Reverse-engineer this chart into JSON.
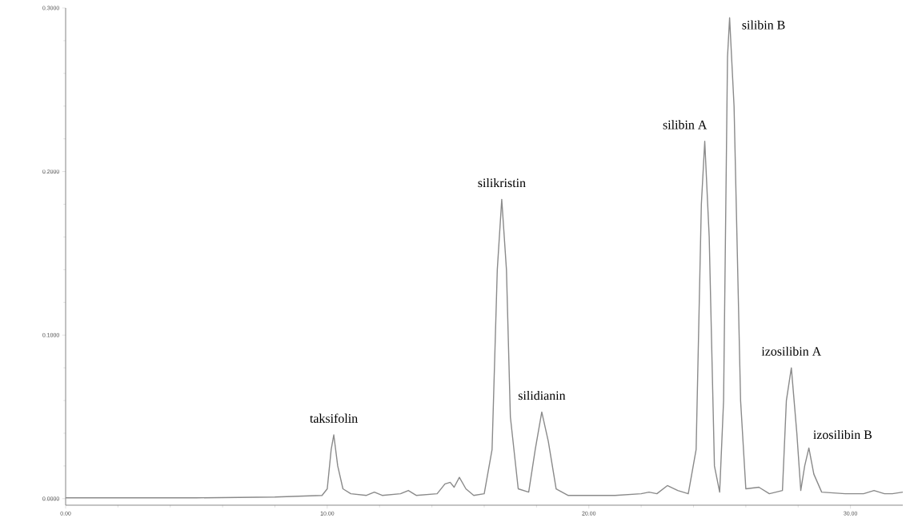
{
  "chart_data": {
    "type": "line",
    "x": [
      0,
      5,
      8,
      9.8,
      10.0,
      10.15,
      10.25,
      10.4,
      10.6,
      10.9,
      11.5,
      11.8,
      12.1,
      12.8,
      13.1,
      13.4,
      14.2,
      14.5,
      14.7,
      14.85,
      15.05,
      15.3,
      15.6,
      16.0,
      16.3,
      16.5,
      16.67,
      16.85,
      17.0,
      17.3,
      17.7,
      17.95,
      18.2,
      18.45,
      18.75,
      19.2,
      20,
      21,
      22.0,
      22.3,
      22.6,
      23.0,
      23.4,
      23.8,
      24.1,
      24.3,
      24.43,
      24.6,
      24.8,
      25.0,
      25.15,
      25.3,
      25.38,
      25.55,
      25.8,
      26.0,
      26.5,
      26.9,
      27.4,
      27.55,
      27.74,
      27.95,
      28.1,
      28.25,
      28.41,
      28.6,
      28.9,
      29.8,
      30.5,
      30.9,
      31.3,
      31.6,
      32.0
    ],
    "series": [
      {
        "color": "#8a8a8a",
        "values": [
          0.0005,
          0.0005,
          0.001,
          0.002,
          0.006,
          0.03,
          0.039,
          0.02,
          0.006,
          0.003,
          0.002,
          0.004,
          0.002,
          0.003,
          0.005,
          0.002,
          0.003,
          0.009,
          0.01,
          0.007,
          0.013,
          0.006,
          0.002,
          0.003,
          0.03,
          0.14,
          0.183,
          0.14,
          0.05,
          0.006,
          0.004,
          0.03,
          0.053,
          0.035,
          0.006,
          0.002,
          0.002,
          0.002,
          0.003,
          0.004,
          0.003,
          0.008,
          0.005,
          0.003,
          0.03,
          0.18,
          0.2185,
          0.16,
          0.02,
          0.004,
          0.06,
          0.27,
          0.294,
          0.24,
          0.06,
          0.006,
          0.007,
          0.003,
          0.005,
          0.06,
          0.08,
          0.04,
          0.005,
          0.02,
          0.031,
          0.015,
          0.004,
          0.003,
          0.003,
          0.005,
          0.003,
          0.003,
          0.004
        ]
      }
    ],
    "xlim": [
      0,
      32
    ],
    "ylim": [
      -0.004,
      0.3
    ],
    "xticks": [
      {
        "value": 0,
        "label": "0.00"
      },
      {
        "value": 10,
        "label": "10.00"
      },
      {
        "value": 20,
        "label": "20.00"
      },
      {
        "value": 30,
        "label": "30.00"
      }
    ],
    "yticks": [
      {
        "value": 0,
        "label": "0.0000"
      },
      {
        "value": 0.1,
        "label": "0.1000"
      },
      {
        "value": 0.2,
        "label": "0.2000"
      },
      {
        "value": 0.3,
        "label": "0.3000"
      }
    ],
    "annotations": [
      {
        "text": "taksifolin",
        "x": 10.25,
        "y": 0.039
      },
      {
        "text": "silikristin",
        "x": 16.67,
        "y": 0.183
      },
      {
        "text": "silidianin",
        "x": 18.2,
        "y": 0.053
      },
      {
        "text": "silibin A",
        "x": 24.43,
        "y": 0.2185
      },
      {
        "text": "silibin B",
        "x": 25.38,
        "y": 0.294
      },
      {
        "text": "izosilibin A",
        "x": 27.74,
        "y": 0.08
      },
      {
        "text": "izosilibin B",
        "x": 28.41,
        "y": 0.031
      }
    ],
    "marker": "none",
    "line_style": "solid"
  }
}
